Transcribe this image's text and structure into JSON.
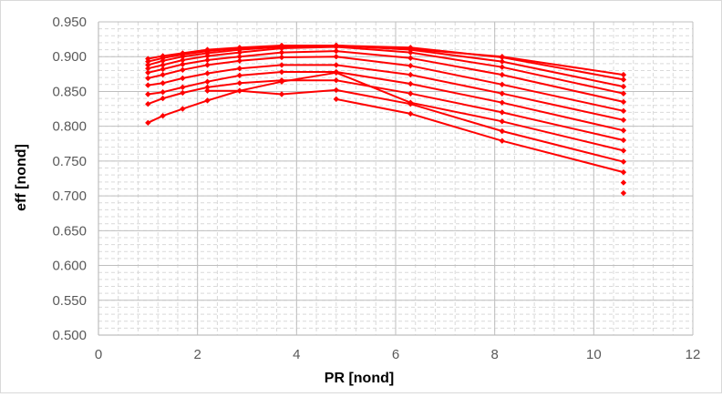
{
  "chart_data": {
    "type": "line",
    "xlabel": "PR [nond]",
    "ylabel": "eff [nond]",
    "xlim": [
      0,
      12
    ],
    "ylim": [
      0.5,
      0.95
    ],
    "x_ticks": [
      "0",
      "2",
      "4",
      "6",
      "8",
      "10",
      "12"
    ],
    "y_ticks": [
      "0.500",
      "0.550",
      "0.600",
      "0.650",
      "0.700",
      "0.750",
      "0.800",
      "0.850",
      "0.900",
      "0.950"
    ],
    "grid": "major and minor dashed",
    "legend": "none",
    "series_color": "#ff0000",
    "x": [
      1.0,
      1.3,
      1.7,
      2.2,
      2.85,
      3.7,
      4.8,
      6.3,
      8.15,
      10.6
    ],
    "series": [
      {
        "values": [
          0.897,
          0.901,
          0.905,
          0.91,
          0.913,
          0.916,
          0.916,
          0.911,
          0.9,
          0.874
        ]
      },
      {
        "values": [
          0.893,
          0.898,
          0.903,
          0.908,
          0.912,
          0.915,
          0.916,
          0.913,
          0.899,
          0.867
        ]
      },
      {
        "values": [
          0.888,
          0.894,
          0.9,
          0.905,
          0.91,
          0.914,
          0.916,
          0.91,
          0.893,
          0.857
        ]
      },
      {
        "values": [
          0.883,
          0.888,
          0.895,
          0.901,
          0.906,
          0.912,
          0.914,
          0.906,
          0.885,
          0.847
        ]
      },
      {
        "values": [
          0.877,
          0.882,
          0.889,
          0.895,
          0.9,
          0.906,
          0.908,
          0.898,
          0.874,
          0.835
        ]
      },
      {
        "values": [
          0.869,
          0.874,
          0.881,
          0.888,
          0.894,
          0.899,
          0.9,
          0.887,
          0.86,
          0.822
        ]
      },
      {
        "values": [
          0.859,
          0.862,
          0.869,
          0.876,
          0.883,
          0.888,
          0.888,
          0.874,
          0.847,
          0.809
        ]
      },
      {
        "values": [
          0.846,
          0.849,
          0.856,
          0.864,
          0.873,
          0.878,
          0.878,
          0.861,
          0.834,
          0.794
        ]
      },
      {
        "values": [
          0.832,
          0.84,
          0.848,
          0.856,
          0.862,
          0.866,
          0.866,
          0.847,
          0.82,
          0.78
        ]
      },
      {
        "values": [
          0.805,
          0.815,
          0.825,
          0.837,
          0.851,
          0.864,
          0.877,
          0.834,
          0.807,
          0.765
        ]
      },
      {
        "values": [
          null,
          null,
          null,
          0.851,
          0.851,
          0.846,
          0.852,
          0.832,
          0.793,
          0.749
        ]
      },
      {
        "values": [
          null,
          null,
          null,
          null,
          null,
          null,
          0.839,
          0.818,
          0.779,
          0.734
        ]
      },
      {
        "values": [
          null,
          null,
          null,
          null,
          null,
          null,
          null,
          null,
          null,
          0.719
        ]
      },
      {
        "values": [
          null,
          null,
          null,
          null,
          null,
          null,
          null,
          null,
          null,
          0.704
        ]
      }
    ]
  }
}
